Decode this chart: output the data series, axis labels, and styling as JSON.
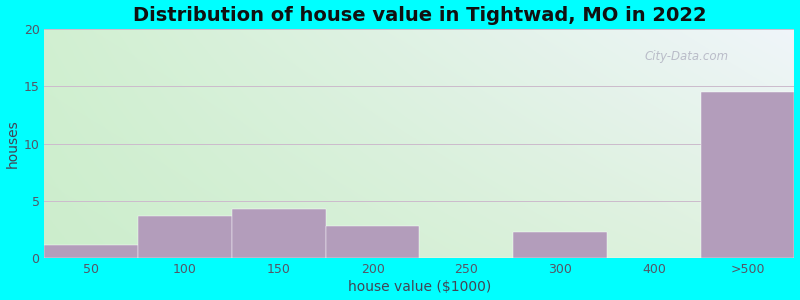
{
  "title": "Distribution of house value in Tightwad, MO in 2022",
  "xlabel": "house value ($1000)",
  "ylabel": "houses",
  "categories": [
    "50",
    "100",
    "150",
    "200",
    "250",
    "300",
    "400",
    ">500"
  ],
  "values": [
    1.2,
    3.7,
    4.3,
    2.8,
    0,
    2.3,
    0,
    14.5
  ],
  "bar_color": "#b39dbb",
  "ylim": [
    0,
    20
  ],
  "yticks": [
    0,
    5,
    10,
    15,
    20
  ],
  "background_outer": "#00ffff",
  "title_fontsize": 14,
  "axis_label_fontsize": 10,
  "tick_fontsize": 9,
  "grid_color": "#ccbbcc",
  "watermark_text": "City-Data.com",
  "grad_topleft": "#cce8cc",
  "grad_topright": "#e8eef8",
  "grad_bottomleft": "#ddf0dd",
  "grad_bottomright": "#f0f8ff"
}
